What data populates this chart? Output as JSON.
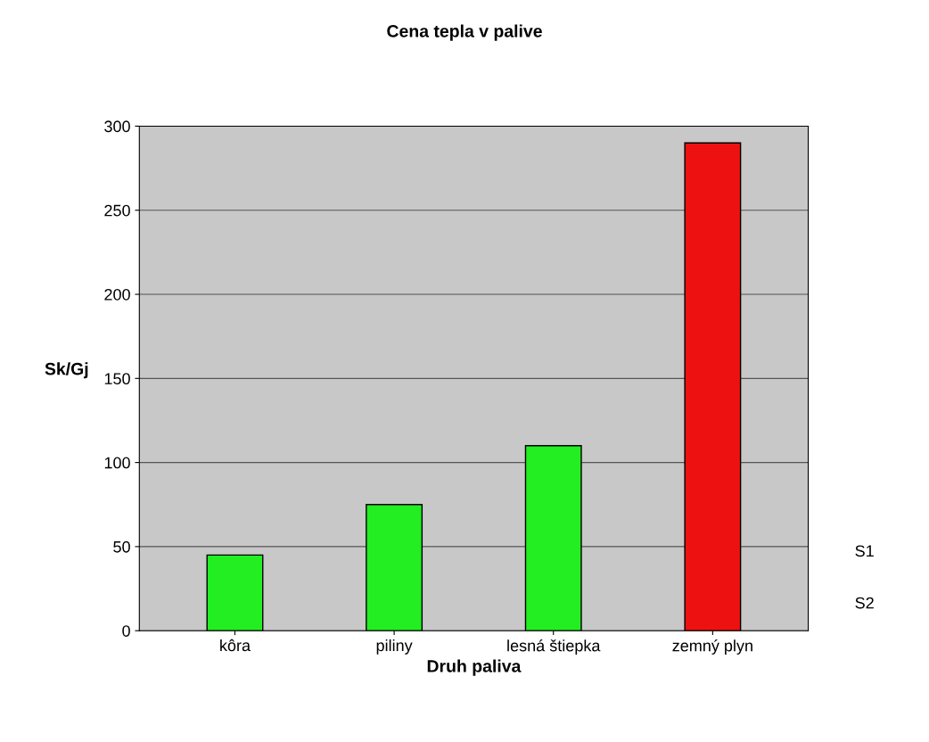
{
  "chart_data": {
    "type": "bar",
    "title": "Cena tepla v palive",
    "xlabel": "Druh paliva",
    "ylabel": "Sk/Gj",
    "categories": [
      "kôra",
      "piliny",
      "lesná štiepka",
      "zemný plyn"
    ],
    "values": [
      45,
      75,
      110,
      290
    ],
    "colors": [
      "#22ee22",
      "#22ee22",
      "#22ee22",
      "#ee1111"
    ],
    "ylim": [
      0,
      300
    ],
    "yticks": [
      0,
      50,
      100,
      150,
      200,
      250,
      300
    ],
    "grid": "y",
    "annotations": [
      "S1",
      "S2"
    ]
  }
}
